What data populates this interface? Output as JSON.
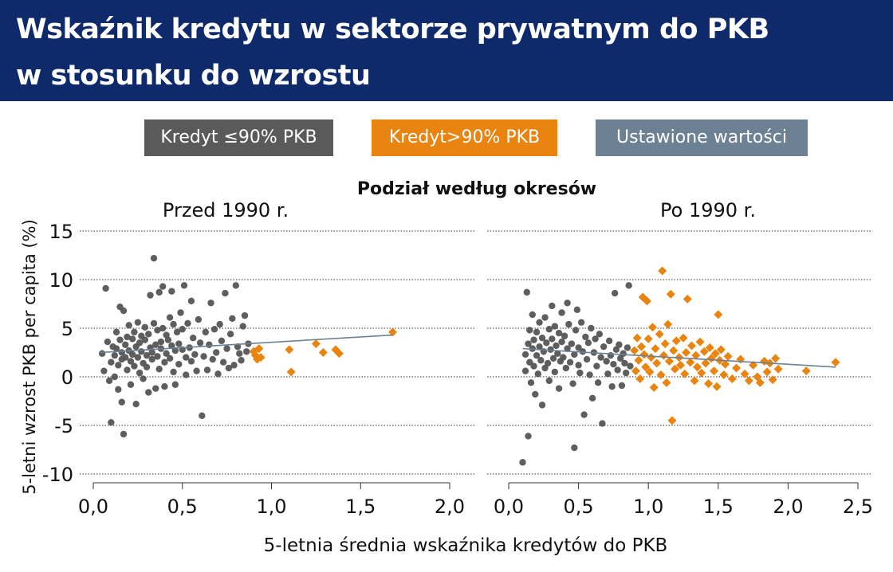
{
  "header": {
    "title_line1": "Wskaźnik kredytu w sektorze prywatnym do PKB",
    "title_line2": "w stosunku do wzrostu"
  },
  "legend": [
    {
      "label": "Kredyt ≤90% PKB",
      "color": "#5a5a5a"
    },
    {
      "label": "Kredyt>90% PKB",
      "color": "#e8840f"
    },
    {
      "label": "Ustawione wartości",
      "color": "#6c8194"
    }
  ],
  "chart_data": {
    "type": "scatter",
    "title": "Podział według okresów",
    "xlabel": "5-letnia średnia wskaźnika kredytów do PKB",
    "ylabel": "5-letni wzrost PKB per capita (%)",
    "ylim": [
      -10,
      15
    ],
    "yticks": [
      "15",
      "10",
      "5",
      "0",
      "-5",
      "-10"
    ],
    "grid": "horizontal dotted",
    "colors": {
      "low": "#555555",
      "high": "#e8840f",
      "fit": "#6c8194"
    },
    "panels": [
      {
        "title": "Przed 1990 r.",
        "xlim": [
          0,
          2.0
        ],
        "xticks": [
          "0,0",
          "0,5",
          "1,0",
          "1,5",
          "2,0"
        ],
        "fit": [
          [
            0.04,
            2.5
          ],
          [
            1.68,
            4.3
          ]
        ],
        "low_credit_points": [
          [
            0.05,
            2.4
          ],
          [
            0.06,
            0.6
          ],
          [
            0.07,
            9.1
          ],
          [
            0.08,
            3.6
          ],
          [
            0.09,
            -0.4
          ],
          [
            0.1,
            1.5
          ],
          [
            0.1,
            -4.7
          ],
          [
            0.11,
            3.1
          ],
          [
            0.12,
            2.2
          ],
          [
            0.12,
            0.0
          ],
          [
            0.13,
            4.6
          ],
          [
            0.13,
            2.9
          ],
          [
            0.14,
            1.2
          ],
          [
            0.14,
            -1.3
          ],
          [
            0.15,
            7.2
          ],
          [
            0.15,
            3.8
          ],
          [
            0.16,
            2.5
          ],
          [
            0.16,
            1.8
          ],
          [
            0.16,
            -2.6
          ],
          [
            0.17,
            -5.9
          ],
          [
            0.17,
            6.8
          ],
          [
            0.18,
            3.3
          ],
          [
            0.18,
            2.0
          ],
          [
            0.19,
            4.1
          ],
          [
            0.19,
            0.7
          ],
          [
            0.2,
            5.3
          ],
          [
            0.2,
            2.7
          ],
          [
            0.21,
            1.6
          ],
          [
            0.21,
            -0.8
          ],
          [
            0.22,
            3.9
          ],
          [
            0.22,
            2.3
          ],
          [
            0.23,
            4.6
          ],
          [
            0.23,
            1.1
          ],
          [
            0.24,
            -2.8
          ],
          [
            0.24,
            3.1
          ],
          [
            0.25,
            5.6
          ],
          [
            0.25,
            2.0
          ],
          [
            0.26,
            3.5
          ],
          [
            0.26,
            0.4
          ],
          [
            0.27,
            4.2
          ],
          [
            0.27,
            2.6
          ],
          [
            0.28,
            1.4
          ],
          [
            0.28,
            -0.2
          ],
          [
            0.29,
            3.8
          ],
          [
            0.29,
            5.1
          ],
          [
            0.3,
            2.2
          ],
          [
            0.3,
            1.0
          ],
          [
            0.31,
            -1.6
          ],
          [
            0.31,
            4.4
          ],
          [
            0.32,
            3.0
          ],
          [
            0.32,
            8.4
          ],
          [
            0.33,
            2.5
          ],
          [
            0.33,
            1.8
          ],
          [
            0.34,
            12.2
          ],
          [
            0.34,
            5.5
          ],
          [
            0.35,
            3.3
          ],
          [
            0.35,
            -1.2
          ],
          [
            0.36,
            4.8
          ],
          [
            0.36,
            2.1
          ],
          [
            0.37,
            8.7
          ],
          [
            0.37,
            0.8
          ],
          [
            0.38,
            3.6
          ],
          [
            0.38,
            2.9
          ],
          [
            0.39,
            9.3
          ],
          [
            0.39,
            5.0
          ],
          [
            0.4,
            1.5
          ],
          [
            0.4,
            -1.0
          ],
          [
            0.41,
            4.3
          ],
          [
            0.41,
            2.4
          ],
          [
            0.42,
            3.8
          ],
          [
            0.43,
            6.1
          ],
          [
            0.43,
            1.9
          ],
          [
            0.44,
            8.8
          ],
          [
            0.44,
            3.2
          ],
          [
            0.45,
            5.4
          ],
          [
            0.45,
            0.5
          ],
          [
            0.46,
            2.7
          ],
          [
            0.46,
            -0.8
          ],
          [
            0.47,
            4.6
          ],
          [
            0.48,
            3.4
          ],
          [
            0.48,
            1.3
          ],
          [
            0.49,
            6.6
          ],
          [
            0.5,
            2.8
          ],
          [
            0.5,
            4.9
          ],
          [
            0.51,
            9.4
          ],
          [
            0.52,
            2.0
          ],
          [
            0.52,
            0.2
          ],
          [
            0.53,
            5.5
          ],
          [
            0.54,
            3.0
          ],
          [
            0.55,
            1.6
          ],
          [
            0.55,
            7.8
          ],
          [
            0.56,
            4.0
          ],
          [
            0.57,
            2.3
          ],
          [
            0.58,
            0.6
          ],
          [
            0.59,
            5.9
          ],
          [
            0.6,
            3.5
          ],
          [
            0.61,
            -4.0
          ],
          [
            0.62,
            2.1
          ],
          [
            0.63,
            4.6
          ],
          [
            0.64,
            0.7
          ],
          [
            0.65,
            3.3
          ],
          [
            0.66,
            7.6
          ],
          [
            0.67,
            1.8
          ],
          [
            0.68,
            4.9
          ],
          [
            0.69,
            2.5
          ],
          [
            0.7,
            0.3
          ],
          [
            0.71,
            5.4
          ],
          [
            0.72,
            3.7
          ],
          [
            0.73,
            1.5
          ],
          [
            0.74,
            8.6
          ],
          [
            0.75,
            2.9
          ],
          [
            0.76,
            0.9
          ],
          [
            0.77,
            4.4
          ],
          [
            0.78,
            6.0
          ],
          [
            0.79,
            1.2
          ],
          [
            0.8,
            9.4
          ],
          [
            0.81,
            3.1
          ],
          [
            0.82,
            2.4
          ],
          [
            0.83,
            1.7
          ],
          [
            0.84,
            5.2
          ],
          [
            0.85,
            6.3
          ],
          [
            0.86,
            2.6
          ],
          [
            0.87,
            3.4
          ]
        ],
        "high_credit_points": [
          [
            0.9,
            2.6
          ],
          [
            0.91,
            2.2
          ],
          [
            0.92,
            1.8
          ],
          [
            0.93,
            2.9
          ],
          [
            0.94,
            2.0
          ],
          [
            1.1,
            2.8
          ],
          [
            1.11,
            0.5
          ],
          [
            1.25,
            3.4
          ],
          [
            1.29,
            2.5
          ],
          [
            1.36,
            2.8
          ],
          [
            1.38,
            2.4
          ],
          [
            1.68,
            4.6
          ]
        ]
      },
      {
        "title": "Po 1990 r.",
        "xlim": [
          0,
          2.5
        ],
        "xticks": [
          "0,0",
          "0,5",
          "1,0",
          "1,5",
          "2,0",
          "2,5"
        ],
        "fit": [
          [
            0.1,
            2.9
          ],
          [
            2.34,
            1.0
          ]
        ],
        "low_credit_points": [
          [
            0.1,
            -8.8
          ],
          [
            0.12,
            2.3
          ],
          [
            0.12,
            0.6
          ],
          [
            0.13,
            8.7
          ],
          [
            0.14,
            3.4
          ],
          [
            0.14,
            -6.1
          ],
          [
            0.15,
            4.8
          ],
          [
            0.15,
            1.5
          ],
          [
            0.16,
            -0.6
          ],
          [
            0.17,
            2.9
          ],
          [
            0.17,
            6.4
          ],
          [
            0.18,
            3.8
          ],
          [
            0.18,
            1.1
          ],
          [
            0.19,
            -1.8
          ],
          [
            0.2,
            4.6
          ],
          [
            0.2,
            2.2
          ],
          [
            0.21,
            0.3
          ],
          [
            0.22,
            5.6
          ],
          [
            0.22,
            3.1
          ],
          [
            0.23,
            1.7
          ],
          [
            0.24,
            -2.9
          ],
          [
            0.24,
            4.0
          ],
          [
            0.25,
            2.6
          ],
          [
            0.26,
            6.1
          ],
          [
            0.26,
            0.9
          ],
          [
            0.27,
            3.5
          ],
          [
            0.28,
            1.4
          ],
          [
            0.29,
            4.9
          ],
          [
            0.29,
            -0.4
          ],
          [
            0.3,
            2.8
          ],
          [
            0.31,
            7.3
          ],
          [
            0.31,
            3.9
          ],
          [
            0.32,
            1.9
          ],
          [
            0.33,
            5.2
          ],
          [
            0.33,
            0.5
          ],
          [
            0.34,
            3.2
          ],
          [
            0.35,
            2.4
          ],
          [
            0.36,
            4.5
          ],
          [
            0.36,
            -1.2
          ],
          [
            0.37,
            1.6
          ],
          [
            0.38,
            6.6
          ],
          [
            0.38,
            3.6
          ],
          [
            0.39,
            2.0
          ],
          [
            0.4,
            4.2
          ],
          [
            0.41,
            0.9
          ],
          [
            0.42,
            7.6
          ],
          [
            0.42,
            2.9
          ],
          [
            0.43,
            5.4
          ],
          [
            0.44,
            1.5
          ],
          [
            0.45,
            3.4
          ],
          [
            0.46,
            -0.7
          ],
          [
            0.47,
            -7.3
          ],
          [
            0.47,
            2.3
          ],
          [
            0.48,
            4.8
          ],
          [
            0.49,
            6.9
          ],
          [
            0.5,
            1.2
          ],
          [
            0.5,
            3.0
          ],
          [
            0.51,
            0.4
          ],
          [
            0.52,
            5.6
          ],
          [
            0.53,
            2.6
          ],
          [
            0.54,
            -3.9
          ],
          [
            0.55,
            4.1
          ],
          [
            0.56,
            1.8
          ],
          [
            0.57,
            3.5
          ],
          [
            0.58,
            0.2
          ],
          [
            0.59,
            5.0
          ],
          [
            0.6,
            -2.2
          ],
          [
            0.61,
            2.5
          ],
          [
            0.62,
            3.9
          ],
          [
            0.63,
            1.1
          ],
          [
            0.64,
            -0.6
          ],
          [
            0.65,
            4.4
          ],
          [
            0.66,
            2.0
          ],
          [
            0.67,
            -4.8
          ],
          [
            0.68,
            3.1
          ],
          [
            0.7,
            1.6
          ],
          [
            0.71,
            0.3
          ],
          [
            0.72,
            3.7
          ],
          [
            0.73,
            2.2
          ],
          [
            0.74,
            -1.0
          ],
          [
            0.75,
            1.3
          ],
          [
            0.76,
            8.6
          ],
          [
            0.77,
            2.8
          ],
          [
            0.78,
            0.7
          ],
          [
            0.79,
            3.3
          ],
          [
            0.8,
            1.9
          ],
          [
            0.81,
            -0.9
          ],
          [
            0.82,
            2.4
          ],
          [
            0.83,
            1.4
          ],
          [
            0.84,
            0.4
          ],
          [
            0.85,
            3.0
          ],
          [
            0.86,
            9.4
          ],
          [
            0.87,
            1.1
          ]
        ],
        "high_credit_points": [
          [
            0.9,
            2.7
          ],
          [
            0.91,
            0.6
          ],
          [
            0.92,
            4.0
          ],
          [
            0.93,
            1.7
          ],
          [
            0.94,
            -0.2
          ],
          [
            0.95,
            3.1
          ],
          [
            0.96,
            8.2
          ],
          [
            0.97,
            2.3
          ],
          [
            0.98,
            1.0
          ],
          [
            0.99,
            7.8
          ],
          [
            1.0,
            3.9
          ],
          [
            1.01,
            0.5
          ],
          [
            1.02,
            2.0
          ],
          [
            1.03,
            5.1
          ],
          [
            1.04,
            -1.1
          ],
          [
            1.05,
            2.9
          ],
          [
            1.06,
            1.4
          ],
          [
            1.08,
            4.4
          ],
          [
            1.09,
            0.2
          ],
          [
            1.1,
            10.9
          ],
          [
            1.11,
            2.2
          ],
          [
            1.12,
            3.4
          ],
          [
            1.13,
            -0.6
          ],
          [
            1.14,
            5.4
          ],
          [
            1.15,
            1.6
          ],
          [
            1.16,
            8.5
          ],
          [
            1.17,
            -4.5
          ],
          [
            1.18,
            2.7
          ],
          [
            1.19,
            0.8
          ],
          [
            1.2,
            3.7
          ],
          [
            1.22,
            2.0
          ],
          [
            1.23,
            1.2
          ],
          [
            1.25,
            4.0
          ],
          [
            1.26,
            0.3
          ],
          [
            1.27,
            2.5
          ],
          [
            1.28,
            8.0
          ],
          [
            1.3,
            1.5
          ],
          [
            1.31,
            3.2
          ],
          [
            1.33,
            -0.4
          ],
          [
            1.34,
            2.2
          ],
          [
            1.35,
            1.0
          ],
          [
            1.37,
            3.6
          ],
          [
            1.38,
            0.4
          ],
          [
            1.4,
            2.6
          ],
          [
            1.41,
            1.4
          ],
          [
            1.43,
            -0.7
          ],
          [
            1.44,
            3.0
          ],
          [
            1.45,
            1.9
          ],
          [
            1.47,
            0.6
          ],
          [
            1.48,
            2.4
          ],
          [
            1.49,
            -1.0
          ],
          [
            1.5,
            6.4
          ],
          [
            1.51,
            1.7
          ],
          [
            1.52,
            2.8
          ],
          [
            1.54,
            0.2
          ],
          [
            1.55,
            1.3
          ],
          [
            1.57,
            2.1
          ],
          [
            1.6,
            -0.2
          ],
          [
            1.63,
            0.9
          ],
          [
            1.66,
            1.8
          ],
          [
            1.69,
            0.3
          ],
          [
            1.72,
            -0.4
          ],
          [
            1.75,
            1.2
          ],
          [
            1.78,
            0.0
          ],
          [
            1.8,
            -0.6
          ],
          [
            1.83,
            1.6
          ],
          [
            1.85,
            0.5
          ],
          [
            1.87,
            1.4
          ],
          [
            1.89,
            -0.3
          ],
          [
            1.91,
            1.9
          ],
          [
            1.93,
            0.8
          ],
          [
            2.13,
            0.6
          ],
          [
            2.34,
            1.5
          ]
        ]
      }
    ]
  }
}
